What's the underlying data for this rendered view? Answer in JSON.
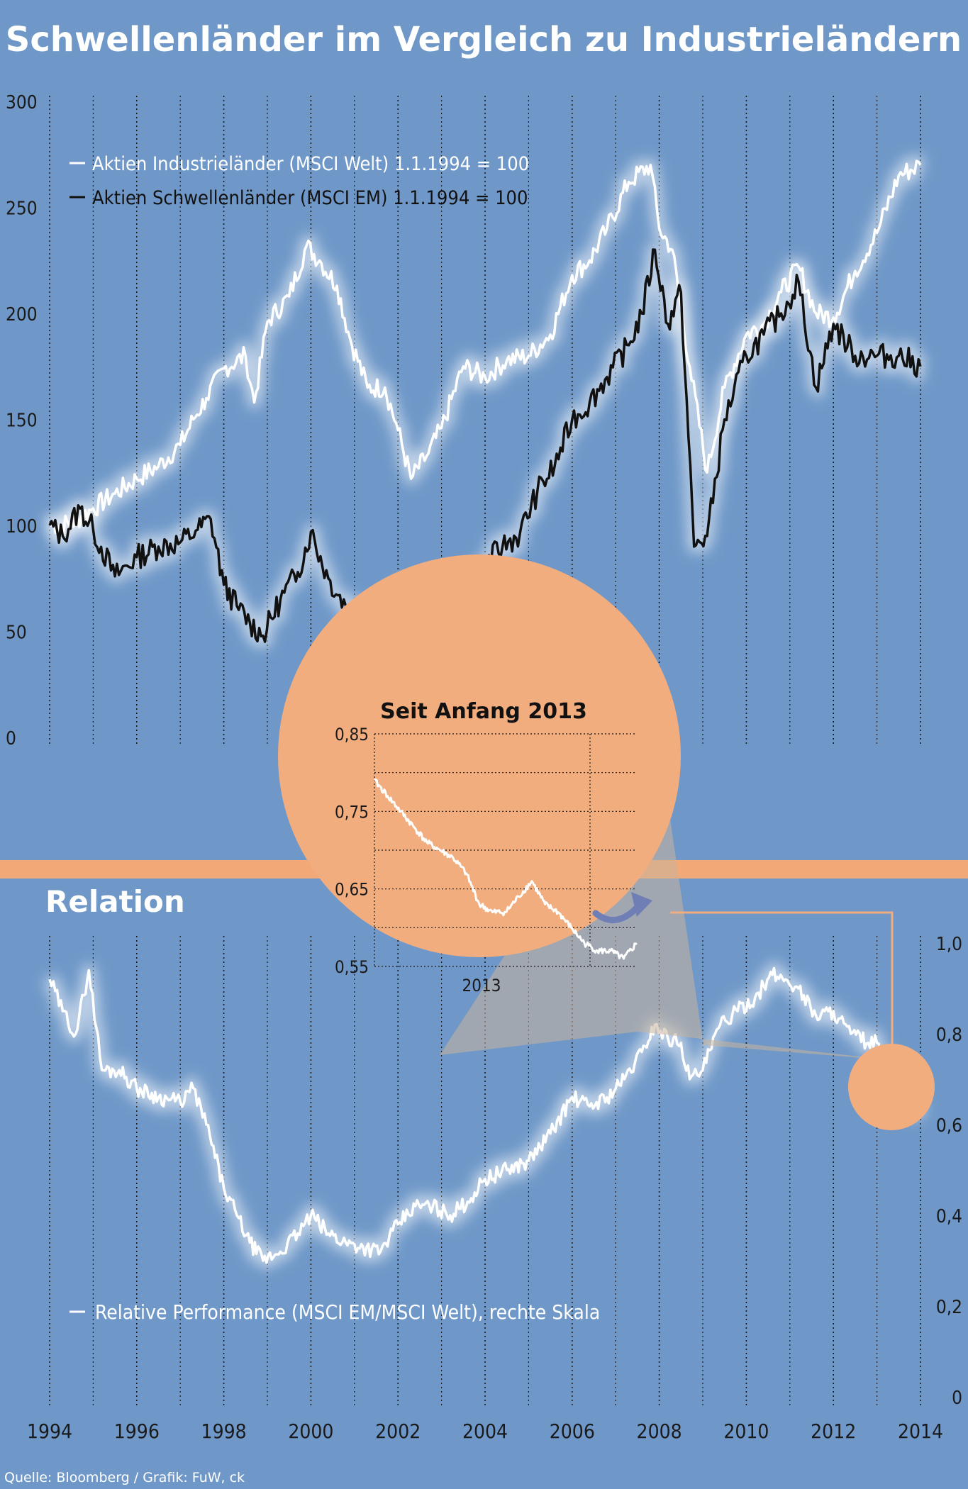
{
  "title": "Schwellenländer im Vergleich zu Industrieländern",
  "source": "Quelle: Bloomberg / Grafik: FuW, ck",
  "colors": {
    "background": "#6f98c8",
    "band": "#f2a877",
    "inset_fill": "#f2ad7f",
    "world_line": "#ffffff",
    "em_line": "#111111",
    "glow": "#ffffff",
    "arrow": "#6f7fb5"
  },
  "x_ticks": [
    "1994",
    "1996",
    "1998",
    "2000",
    "2002",
    "2004",
    "2006",
    "2008",
    "2010",
    "2012",
    "2014"
  ],
  "chart_data": [
    {
      "type": "line",
      "title": "",
      "xlabel": "",
      "ylabel": "",
      "xlim": [
        1994,
        2014
      ],
      "ylim": [
        0,
        300
      ],
      "y_ticks": [
        "0",
        "50",
        "100",
        "150",
        "200",
        "250",
        "300"
      ],
      "grid": "vertical dotted lines every year",
      "legend_position": "top-left",
      "series": [
        {
          "name": "Aktien Industrieländer (MSCI Welt) 1.1.1994 = 100",
          "color": "#ffffff",
          "x": [
            1994,
            1994.5,
            1995,
            1995.5,
            1996,
            1996.5,
            1997,
            1997.3,
            1997.6,
            1998,
            1998.5,
            1998.7,
            1999,
            1999.5,
            1999.9,
            2000.2,
            2000.6,
            2000.9,
            2001.3,
            2001.7,
            2002,
            2002.3,
            2002.7,
            2003,
            2003.5,
            2004,
            2004.5,
            2005,
            2005.5,
            2006,
            2006.4,
            2006.8,
            2007.3,
            2007.8,
            2008,
            2008.3,
            2008.7,
            2009.1,
            2009.5,
            2010,
            2010.4,
            2010.8,
            2011.2,
            2011.6,
            2012,
            2012.5,
            2013,
            2013.5,
            2014
          ],
          "values": [
            100,
            101,
            108,
            115,
            122,
            128,
            138,
            150,
            160,
            174,
            180,
            158,
            196,
            208,
            232,
            225,
            213,
            188,
            165,
            165,
            145,
            122,
            134,
            146,
            175,
            170,
            178,
            180,
            190,
            218,
            225,
            240,
            262,
            270,
            240,
            230,
            175,
            125,
            165,
            190,
            195,
            210,
            222,
            200,
            198,
            220,
            238,
            265,
            270
          ]
        },
        {
          "name": "Aktien Schwellenländer (MSCI EM) 1.1.1994 = 100",
          "color": "#111111",
          "x": [
            1994,
            1994.3,
            1994.7,
            1995,
            1995.5,
            1996,
            1996.5,
            1997,
            1997.4,
            1997.7,
            1998,
            1998.3,
            1998.6,
            1998.9,
            1999.3,
            1999.7,
            2000,
            2000.4,
            2000.8,
            2001.2,
            2001.6,
            2002,
            2002.4,
            2002.8,
            2003.2,
            2003.6,
            2004,
            2004.4,
            2004.8,
            2005.2,
            2005.6,
            2006,
            2006.4,
            2006.8,
            2007.3,
            2007.6,
            2007.9,
            2008.2,
            2008.5,
            2008.8,
            2009.1,
            2009.5,
            2010,
            2010.4,
            2010.8,
            2011.2,
            2011.6,
            2012,
            2012.5,
            2013,
            2013.5,
            2014
          ],
          "values": [
            100,
            95,
            108,
            98,
            76,
            85,
            90,
            92,
            98,
            103,
            72,
            62,
            54,
            48,
            65,
            78,
            97,
            75,
            62,
            60,
            52,
            65,
            60,
            48,
            55,
            64,
            82,
            90,
            96,
            116,
            128,
            150,
            158,
            170,
            185,
            200,
            230,
            195,
            210,
            90,
            95,
            150,
            180,
            190,
            200,
            215,
            165,
            195,
            180,
            180,
            180,
            175
          ]
        }
      ]
    },
    {
      "type": "line",
      "title": "Relation",
      "xlabel": "",
      "ylabel": "",
      "xlim": [
        1994,
        2014
      ],
      "ylim": [
        0,
        1.0
      ],
      "y_ticks": [
        "0",
        "0,2",
        "0,4",
        "0,6",
        "0,8",
        "1,0"
      ],
      "y_axis": "right",
      "legend_position": "bottom-left",
      "series": [
        {
          "name": "Relative Performance (MSCI EM/MSCI Welt), rechte Skala",
          "color": "#ffffff",
          "x": [
            1994,
            1994.3,
            1994.6,
            1994.9,
            1995.2,
            1995.6,
            1996,
            1996.5,
            1997,
            1997.3,
            1997.6,
            1998,
            1998.3,
            1998.6,
            1998.9,
            1999.3,
            1999.7,
            2000,
            2000.4,
            2000.8,
            2001.2,
            2001.6,
            2002,
            2002.4,
            2002.8,
            2003.2,
            2003.6,
            2004,
            2004.5,
            2005,
            2005.5,
            2006,
            2006.4,
            2006.8,
            2007.2,
            2007.6,
            2007.9,
            2008.2,
            2008.5,
            2008.7,
            2009,
            2009.4,
            2009.8,
            2010.2,
            2010.6,
            2010.9,
            2011.2,
            2011.6,
            2012,
            2012.4,
            2012.8,
            2013,
            2013.3,
            2013.6,
            2014
          ],
          "values": [
            0.92,
            0.85,
            0.8,
            0.94,
            0.72,
            0.72,
            0.68,
            0.66,
            0.65,
            0.68,
            0.6,
            0.46,
            0.4,
            0.34,
            0.3,
            0.32,
            0.36,
            0.4,
            0.36,
            0.34,
            0.33,
            0.32,
            0.38,
            0.42,
            0.42,
            0.4,
            0.43,
            0.48,
            0.5,
            0.52,
            0.58,
            0.66,
            0.64,
            0.66,
            0.7,
            0.76,
            0.82,
            0.79,
            0.78,
            0.7,
            0.72,
            0.82,
            0.85,
            0.88,
            0.93,
            0.92,
            0.9,
            0.84,
            0.85,
            0.8,
            0.78,
            0.78,
            0.7,
            0.65,
            0.62
          ]
        }
      ]
    },
    {
      "type": "line",
      "title": "Seit Anfang 2013",
      "xlabel": "",
      "ylabel": "",
      "x_ticks": [
        "2013"
      ],
      "xlim": [
        2013,
        2014
      ],
      "ylim": [
        0.55,
        0.85
      ],
      "y_ticks": [
        "0,55",
        "0,65",
        "0,75",
        "0,85"
      ],
      "series": [
        {
          "name": "",
          "color": "#ffffff",
          "x": [
            2013,
            2013.05,
            2013.1,
            2013.15,
            2013.2,
            2013.25,
            2013.3,
            2013.35,
            2013.4,
            2013.45,
            2013.5,
            2013.55,
            2013.6,
            2013.65,
            2013.7,
            2013.75,
            2013.8,
            2013.85,
            2013.9,
            2013.95,
            2014
          ],
          "values": [
            0.79,
            0.77,
            0.75,
            0.73,
            0.71,
            0.7,
            0.69,
            0.67,
            0.63,
            0.62,
            0.62,
            0.64,
            0.66,
            0.63,
            0.62,
            0.6,
            0.58,
            0.57,
            0.57,
            0.56,
            0.58
          ]
        }
      ]
    }
  ]
}
